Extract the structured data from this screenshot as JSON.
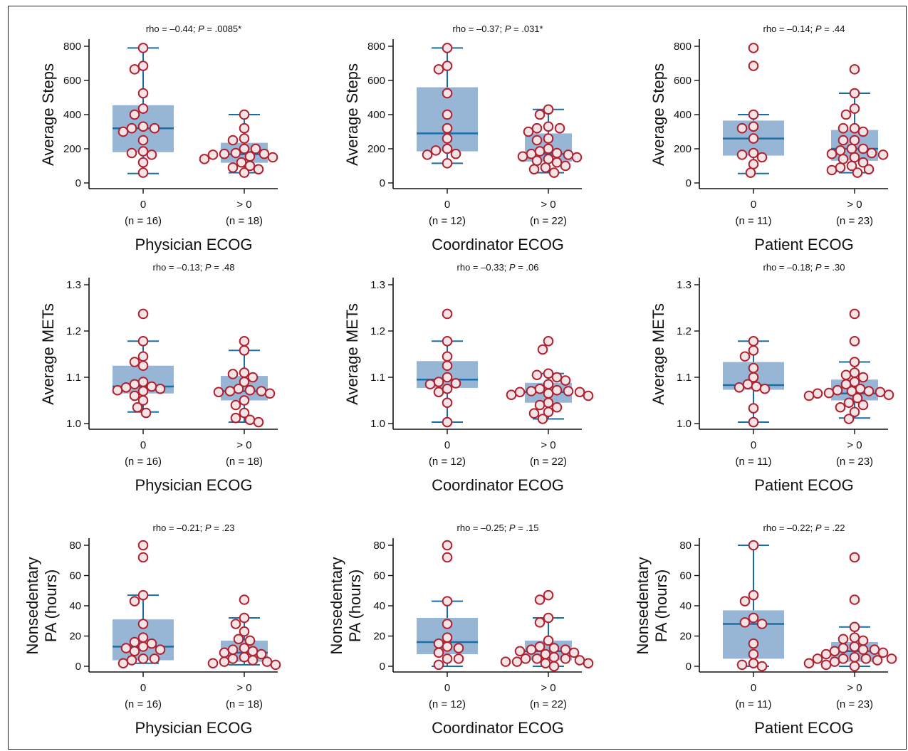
{
  "colors": {
    "box": "#97b6d6",
    "median": "#1a6ea8",
    "whisker": "#1a6ea8",
    "point_fill": "#f4e4e6",
    "point_stroke": "#b0202f"
  },
  "chart_data": [
    {
      "id": "steps-physician",
      "type": "box",
      "annotation_prefix": "rho = –0.44; ",
      "annotation_p": "P",
      "annotation_suffix": " = .0085*",
      "ylabel": [
        "Average Steps"
      ],
      "xlabel": "Physician ECOG",
      "ylim": [
        0,
        800
      ],
      "yticks": [
        0,
        200,
        400,
        600,
        800
      ],
      "ytick_labels": [
        "0",
        "200",
        "400",
        "600",
        "800"
      ],
      "groups": [
        {
          "label": "0",
          "n_label": "(n = 16)",
          "q1": 180,
          "median": 320,
          "q3": 455,
          "whisker_low": 55,
          "whisker_high": 790,
          "points": [
            790,
            685,
            665,
            525,
            435,
            400,
            330,
            320,
            320,
            300,
            250,
            185,
            175,
            165,
            120,
            60
          ]
        },
        {
          "label": "> 0",
          "n_label": "(n = 18)",
          "q1": 118,
          "median": 168,
          "q3": 235,
          "whisker_low": 60,
          "whisker_high": 400,
          "points": [
            400,
            320,
            260,
            250,
            200,
            200,
            175,
            170,
            170,
            165,
            155,
            150,
            140,
            120,
            100,
            90,
            80,
            60
          ]
        }
      ]
    },
    {
      "id": "steps-coordinator",
      "type": "box",
      "annotation_prefix": "rho = –0.37; ",
      "annotation_p": "P",
      "annotation_suffix": " = .031*",
      "ylabel": [
        "Average Steps"
      ],
      "xlabel": "Coordinator ECOG",
      "ylim": [
        0,
        800
      ],
      "yticks": [
        0,
        200,
        400,
        600,
        800
      ],
      "ytick_labels": [
        "0",
        "200",
        "400",
        "600",
        "800"
      ],
      "groups": [
        {
          "label": "0",
          "n_label": "(n = 12)",
          "q1": 185,
          "median": 290,
          "q3": 560,
          "whisker_low": 115,
          "whisker_high": 790,
          "points": [
            790,
            685,
            665,
            525,
            400,
            320,
            260,
            200,
            190,
            170,
            165,
            115
          ]
        },
        {
          "label": "> 0",
          "n_label": "(n = 22)",
          "q1": 125,
          "median": 170,
          "q3": 290,
          "whisker_low": 60,
          "whisker_high": 430,
          "points": [
            430,
            400,
            330,
            320,
            320,
            300,
            260,
            250,
            200,
            185,
            175,
            170,
            165,
            155,
            150,
            140,
            130,
            120,
            100,
            90,
            80,
            60
          ]
        }
      ]
    },
    {
      "id": "steps-patient",
      "type": "box",
      "annotation_prefix": "rho = –0.14; ",
      "annotation_p": "P",
      "annotation_suffix": " = .44",
      "ylabel": [
        "Average Steps"
      ],
      "xlabel": "Patient ECOG",
      "ylim": [
        0,
        800
      ],
      "yticks": [
        0,
        200,
        400,
        600,
        800
      ],
      "ytick_labels": [
        "0",
        "200",
        "400",
        "600",
        "800"
      ],
      "groups": [
        {
          "label": "0",
          "n_label": "(n = 11)",
          "q1": 160,
          "median": 260,
          "q3": 365,
          "whisker_low": 55,
          "whisker_high": 400,
          "points": [
            790,
            685,
            400,
            330,
            320,
            260,
            175,
            165,
            150,
            110,
            60
          ]
        },
        {
          "label": "> 0",
          "n_label": "(n = 23)",
          "q1": 130,
          "median": 200,
          "q3": 310,
          "whisker_low": 60,
          "whisker_high": 525,
          "points": [
            665,
            525,
            435,
            400,
            320,
            320,
            300,
            250,
            250,
            200,
            200,
            190,
            175,
            170,
            165,
            150,
            140,
            120,
            100,
            90,
            80,
            75,
            60
          ]
        }
      ]
    },
    {
      "id": "mets-physician",
      "type": "box",
      "annotation_prefix": "rho = –0.13; ",
      "annotation_p": "P",
      "annotation_suffix": " = .48",
      "ylabel": [
        "Average METs"
      ],
      "xlabel": "Physician ECOG",
      "ylim": [
        1.0,
        1.3
      ],
      "yticks": [
        1.0,
        1.1,
        1.2,
        1.3
      ],
      "ytick_labels": [
        "1.0",
        "1.1",
        "1.2",
        "1.3"
      ],
      "groups": [
        {
          "label": "0",
          "n_label": "(n = 16)",
          "q1": 1.065,
          "median": 1.08,
          "q3": 1.125,
          "whisker_low": 1.025,
          "whisker_high": 1.178,
          "points": [
            1.237,
            1.178,
            1.145,
            1.133,
            1.125,
            1.09,
            1.085,
            1.08,
            1.078,
            1.075,
            1.072,
            1.07,
            1.06,
            1.05,
            1.035,
            1.023
          ]
        },
        {
          "label": "> 0",
          "n_label": "(n = 18)",
          "q1": 1.05,
          "median": 1.07,
          "q3": 1.103,
          "whisker_low": 1.003,
          "whisker_high": 1.158,
          "points": [
            1.178,
            1.158,
            1.11,
            1.107,
            1.1,
            1.09,
            1.075,
            1.072,
            1.07,
            1.07,
            1.068,
            1.065,
            1.05,
            1.04,
            1.023,
            1.012,
            1.008,
            1.003
          ]
        }
      ]
    },
    {
      "id": "mets-coordinator",
      "type": "box",
      "annotation_prefix": "rho = –0.33; ",
      "annotation_p": "P",
      "annotation_suffix": " = .06",
      "ylabel": [
        "Average METs"
      ],
      "xlabel": "Coordinator ECOG",
      "ylim": [
        1.0,
        1.3
      ],
      "yticks": [
        1.0,
        1.1,
        1.2,
        1.3
      ],
      "ytick_labels": [
        "1.0",
        "1.1",
        "1.2",
        "1.3"
      ],
      "groups": [
        {
          "label": "0",
          "n_label": "(n = 12)",
          "q1": 1.077,
          "median": 1.095,
          "q3": 1.135,
          "whisker_low": 1.003,
          "whisker_high": 1.178,
          "points": [
            1.237,
            1.178,
            1.145,
            1.125,
            1.1,
            1.09,
            1.087,
            1.085,
            1.075,
            1.068,
            1.045,
            1.003
          ]
        },
        {
          "label": "> 0",
          "n_label": "(n = 22)",
          "q1": 1.045,
          "median": 1.068,
          "q3": 1.088,
          "whisker_low": 1.01,
          "whisker_high": 1.108,
          "points": [
            1.178,
            1.16,
            1.108,
            1.105,
            1.1,
            1.093,
            1.085,
            1.075,
            1.072,
            1.07,
            1.07,
            1.068,
            1.068,
            1.065,
            1.062,
            1.06,
            1.045,
            1.04,
            1.035,
            1.025,
            1.022,
            1.01
          ]
        }
      ]
    },
    {
      "id": "mets-patient",
      "type": "box",
      "annotation_prefix": "rho = –0.18; ",
      "annotation_p": "P",
      "annotation_suffix": " = .30",
      "ylabel": [
        "Average METs"
      ],
      "xlabel": "Patient ECOG",
      "ylim": [
        1.0,
        1.3
      ],
      "yticks": [
        1.0,
        1.1,
        1.2,
        1.3
      ],
      "ytick_labels": [
        "1.0",
        "1.1",
        "1.2",
        "1.3"
      ],
      "groups": [
        {
          "label": "0",
          "n_label": "(n = 11)",
          "q1": 1.073,
          "median": 1.083,
          "q3": 1.133,
          "whisker_low": 1.003,
          "whisker_high": 1.178,
          "points": [
            1.178,
            1.158,
            1.145,
            1.12,
            1.1,
            1.085,
            1.08,
            1.078,
            1.075,
            1.033,
            1.003
          ]
        },
        {
          "label": "> 0",
          "n_label": "(n = 23)",
          "q1": 1.05,
          "median": 1.065,
          "q3": 1.095,
          "whisker_low": 1.012,
          "whisker_high": 1.133,
          "points": [
            1.237,
            1.178,
            1.133,
            1.11,
            1.105,
            1.1,
            1.09,
            1.085,
            1.075,
            1.072,
            1.07,
            1.07,
            1.068,
            1.066,
            1.065,
            1.062,
            1.06,
            1.055,
            1.045,
            1.04,
            1.035,
            1.025,
            1.01
          ]
        }
      ]
    },
    {
      "id": "pa-physician",
      "type": "box",
      "annotation_prefix": "rho = –0.21; ",
      "annotation_p": "P",
      "annotation_suffix": " = .23",
      "ylabel": [
        "Nonsedentary",
        "PA (hours)"
      ],
      "xlabel": "Physician ECOG",
      "ylim": [
        0,
        80
      ],
      "yticks": [
        0,
        20,
        40,
        60,
        80
      ],
      "ytick_labels": [
        "0",
        "20",
        "40",
        "60",
        "80"
      ],
      "groups": [
        {
          "label": "0",
          "n_label": "(n = 16)",
          "q1": 4,
          "median": 13,
          "q3": 31,
          "whisker_low": 2,
          "whisker_high": 47,
          "points": [
            80,
            72,
            47,
            43,
            28,
            19,
            16,
            15,
            13,
            12,
            11,
            10,
            5,
            5,
            4,
            2
          ]
        },
        {
          "label": "> 0",
          "n_label": "(n = 18)",
          "q1": 3,
          "median": 9,
          "q3": 17,
          "whisker_low": 1,
          "whisker_high": 32,
          "points": [
            44,
            32,
            28,
            23,
            18,
            17,
            12,
            11,
            10,
            9,
            8,
            6,
            5,
            4,
            3,
            3,
            2,
            1
          ]
        }
      ]
    },
    {
      "id": "pa-coordinator",
      "type": "box",
      "annotation_prefix": "rho = –0.25; ",
      "annotation_p": "P",
      "annotation_suffix": " = .15",
      "ylabel": [
        "Nonsedentary",
        "PA (hours)"
      ],
      "xlabel": "Coordinator ECOG",
      "ylim": [
        0,
        80
      ],
      "yticks": [
        0,
        20,
        40,
        60,
        80
      ],
      "ytick_labels": [
        "0",
        "20",
        "40",
        "60",
        "80"
      ],
      "groups": [
        {
          "label": "0",
          "n_label": "(n = 12)",
          "q1": 8,
          "median": 16,
          "q3": 32,
          "whisker_low": 0,
          "whisker_high": 43,
          "points": [
            80,
            72,
            43,
            28,
            19,
            15,
            13,
            12,
            9,
            5,
            5,
            1
          ]
        },
        {
          "label": "> 0",
          "n_label": "(n = 22)",
          "q1": 4,
          "median": 10,
          "q3": 17,
          "whisker_low": 0,
          "whisker_high": 32,
          "points": [
            47,
            44,
            32,
            29,
            17,
            13,
            12,
            11,
            11,
            10,
            9,
            8,
            6,
            5,
            5,
            5,
            4,
            3,
            3,
            2,
            2,
            0
          ]
        }
      ]
    },
    {
      "id": "pa-patient",
      "type": "box",
      "annotation_prefix": "rho = –0.22; ",
      "annotation_p": "P",
      "annotation_suffix": " = .22",
      "ylabel": [
        "Nonsedentary",
        "PA (hours)"
      ],
      "xlabel": "Patient ECOG",
      "ylim": [
        0,
        80
      ],
      "yticks": [
        0,
        20,
        40,
        60,
        80
      ],
      "ytick_labels": [
        "0",
        "20",
        "40",
        "60",
        "80"
      ],
      "groups": [
        {
          "label": "0",
          "n_label": "(n = 11)",
          "q1": 5,
          "median": 28,
          "q3": 37,
          "whisker_low": 0,
          "whisker_high": 80,
          "points": [
            80,
            47,
            43,
            32,
            29,
            28,
            15,
            8,
            2,
            1,
            0
          ]
        },
        {
          "label": "> 0",
          "n_label": "(n = 23)",
          "q1": 3,
          "median": 10,
          "q3": 16,
          "whisker_low": 0,
          "whisker_high": 26,
          "points": [
            72,
            44,
            26,
            19,
            18,
            17,
            13,
            12,
            11,
            11,
            10,
            9,
            8,
            6,
            5,
            5,
            5,
            5,
            4,
            3,
            2,
            1,
            0
          ]
        }
      ]
    }
  ]
}
